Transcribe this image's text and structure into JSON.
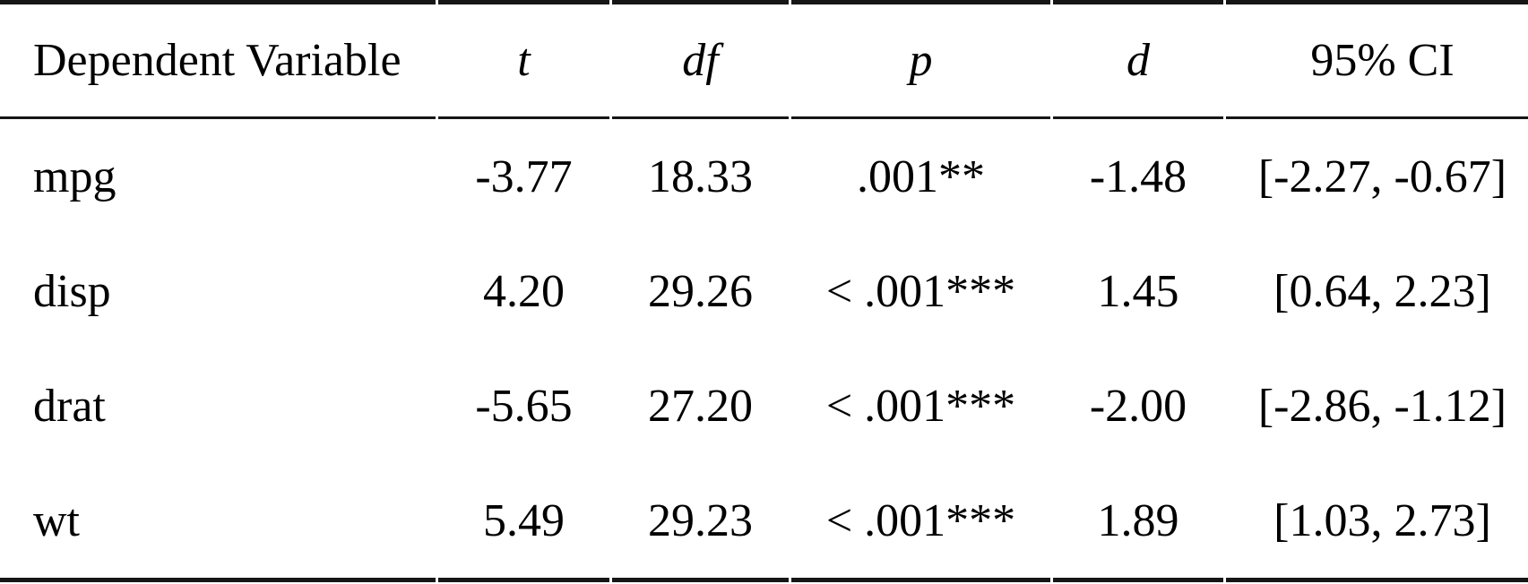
{
  "table": {
    "headers": {
      "dv": "Dependent Variable",
      "t": "t",
      "df": "df",
      "p": "p",
      "d": "d",
      "ci": "95% CI"
    },
    "rows": [
      {
        "dv": "mpg",
        "t": "-3.77",
        "df": "18.33",
        "p": ".001**",
        "d": "-1.48",
        "ci": "[-2.27, -0.67]"
      },
      {
        "dv": "disp",
        "t": "4.20",
        "df": "29.26",
        "p": "< .001***",
        "d": "1.45",
        "ci": "[0.64, 2.23]"
      },
      {
        "dv": "drat",
        "t": "-5.65",
        "df": "27.20",
        "p": "< .001***",
        "d": "-2.00",
        "ci": "[-2.86, -1.12]"
      },
      {
        "dv": "wt",
        "t": "5.49",
        "df": "29.23",
        "p": "< .001***",
        "d": "1.89",
        "ci": "[1.03, 2.73]"
      }
    ],
    "colors": {
      "text": "#000000",
      "rule": "#161616",
      "background": "#ffffff"
    }
  }
}
